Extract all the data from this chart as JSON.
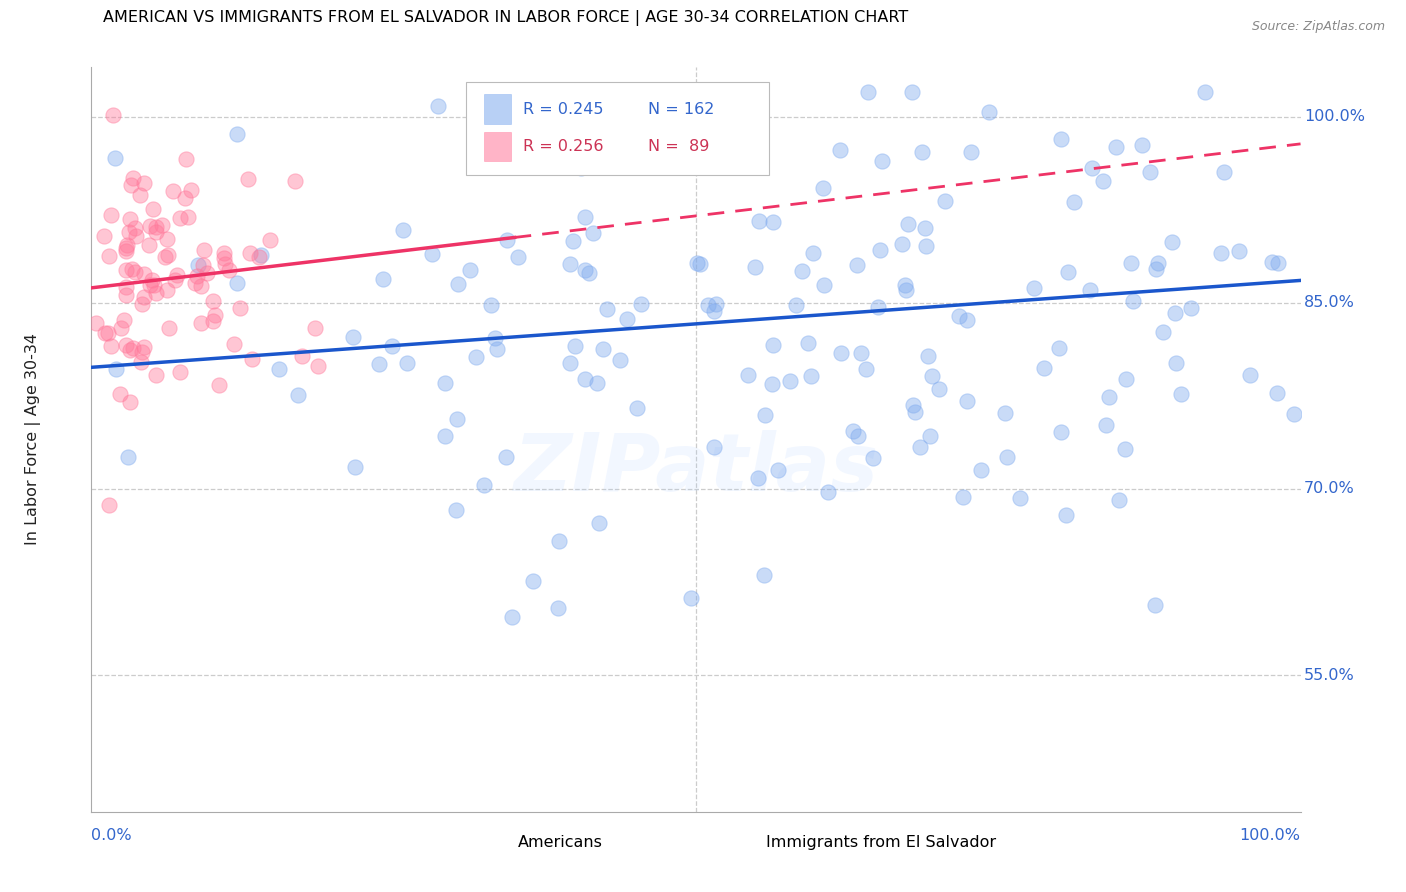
{
  "title": "AMERICAN VS IMMIGRANTS FROM EL SALVADOR IN LABOR FORCE | AGE 30-34 CORRELATION CHART",
  "source": "Source: ZipAtlas.com",
  "ylabel": "In Labor Force | Age 30-34",
  "legend_blue_r": "R = 0.245",
  "legend_blue_n": "N = 162",
  "legend_pink_r": "R = 0.256",
  "legend_pink_n": "N =  89",
  "legend_blue_label": "Americans",
  "legend_pink_label": "Immigrants from El Salvador",
  "blue_color": "#7FAAEE",
  "pink_color": "#FF7799",
  "blue_line_color": "#1A56CC",
  "pink_line_color": "#EE3366",
  "watermark": "ZIPatlas",
  "blue_n": 162,
  "pink_n": 89,
  "ylim_low": 0.44,
  "ylim_high": 1.04,
  "xlim_low": 0.0,
  "xlim_high": 1.0,
  "ytick_vals": [
    0.55,
    0.7,
    0.85,
    1.0
  ],
  "ytick_labels": [
    "55.0%",
    "70.0%",
    "85.0%",
    "100.0%"
  ],
  "blue_line_x0": 0.0,
  "blue_line_y0": 0.798,
  "blue_line_x1": 1.0,
  "blue_line_y1": 0.868,
  "pink_line_x0": 0.0,
  "pink_line_y0": 0.862,
  "pink_line_x1": 1.0,
  "pink_line_y1": 0.978
}
